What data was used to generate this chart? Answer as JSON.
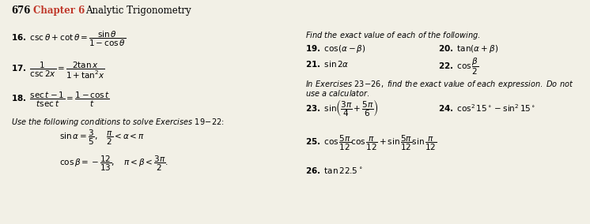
{
  "bg_color": "#f2f0e6",
  "figsize": [
    7.46,
    2.84
  ],
  "dpi": 100,
  "title_num": "676",
  "title_chapter": "Chapter 6",
  "title_text": "Analytic Trigonometry",
  "chapter_color": "#c0392b"
}
